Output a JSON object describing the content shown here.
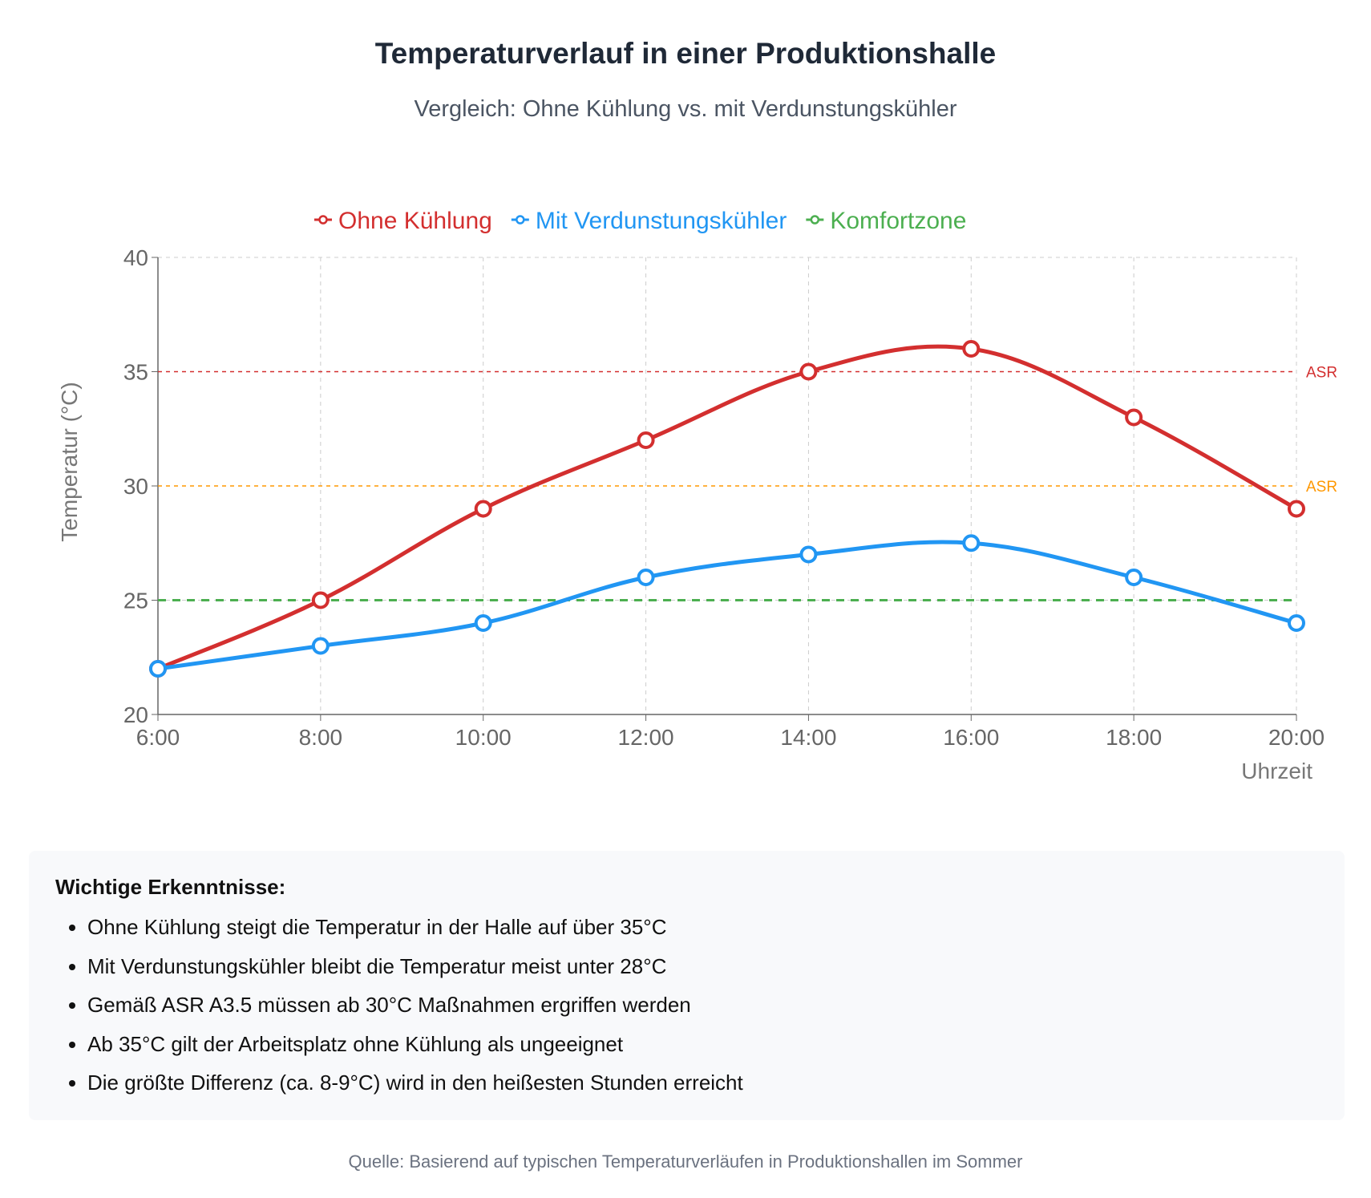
{
  "title": "Temperaturverlauf in einer Produktionshalle",
  "subtitle": "Vergleich: Ohne Kühlung vs. mit Verdunstungskühler",
  "chart_data": {
    "type": "line",
    "categories": [
      "6:00",
      "8:00",
      "10:00",
      "12:00",
      "14:00",
      "16:00",
      "18:00",
      "20:00"
    ],
    "series": [
      {
        "name": "Ohne Kühlung",
        "color": "#d32f2f",
        "values": [
          22,
          25,
          29,
          32,
          35,
          36,
          33,
          29
        ]
      },
      {
        "name": "Mit Verdunstungskühler",
        "color": "#2196f3",
        "values": [
          22,
          23,
          24,
          26,
          27,
          27.5,
          26,
          24
        ]
      },
      {
        "name": "Komfortzone",
        "color": "#4caf50",
        "values": [
          25,
          25,
          25,
          25,
          25,
          25,
          25,
          25
        ]
      }
    ],
    "reference_lines": [
      {
        "value": 35,
        "label": "ASR",
        "color": "#d32f2f"
      },
      {
        "value": 30,
        "label": "ASR",
        "color": "#ff9800"
      }
    ],
    "xlabel": "Uhrzeit",
    "ylabel": "Temperatur (°C)",
    "ylim": [
      20,
      40
    ],
    "yticks": [
      20,
      25,
      30,
      35,
      40
    ],
    "grid": true,
    "legend": "top"
  },
  "insights": {
    "heading": "Wichtige Erkenntnisse:",
    "items": [
      "Ohne Kühlung steigt die Temperatur in der Halle auf über 35°C",
      "Mit Verdunstungskühler bleibt die Temperatur meist unter 28°C",
      "Gemäß ASR A3.5 müssen ab 30°C Maßnahmen ergriffen werden",
      "Ab 35°C gilt der Arbeitsplatz ohne Kühlung als ungeeignet",
      "Die größte Differenz (ca. 8-9°C) wird in den heißesten Stunden erreicht"
    ]
  },
  "source": "Quelle: Basierend auf typischen Temperaturverläufen in Produktionshallen im Sommer"
}
